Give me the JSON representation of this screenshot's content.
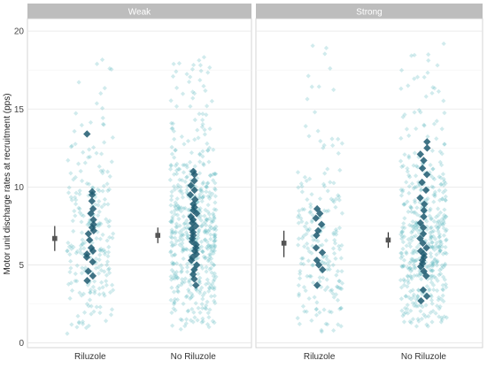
{
  "chart_data": {
    "type": "scatter",
    "ylabel": "Motor unit discharge rates at recruitment (pps)",
    "ylim": [
      -0.3,
      20.8
    ],
    "yticks": [
      0,
      5,
      10,
      15,
      20
    ],
    "categories": [
      "Riluzole",
      "No Riluzole"
    ],
    "grid": true,
    "colors": {
      "points": "#5bb8c0",
      "highlight": "#1e5a70",
      "summary": "#555555",
      "strip": "#bdbdbd",
      "strip_text": "#ffffff",
      "panel_border": "#cccccc",
      "grid": "#ececec"
    },
    "panels": [
      {
        "label": "Weak",
        "groups": [
          {
            "category": "Riluzole",
            "summary": {
              "mean": 6.7,
              "low": 5.9,
              "high": 7.5
            },
            "cloud": {
              "n": 230,
              "min": 0.4,
              "max": 18.2,
              "center": 6.5
            },
            "highlight": [
              4.0,
              4.3,
              4.6,
              5.2,
              5.5,
              5.7,
              5.9,
              6.1,
              6.6,
              7.0,
              7.2,
              7.4,
              7.6,
              7.9,
              8.3,
              8.6,
              9.1,
              9.5,
              9.7,
              13.4
            ]
          },
          {
            "category": "No Riluzole",
            "summary": {
              "mean": 6.9,
              "low": 6.4,
              "high": 7.4
            },
            "cloud": {
              "n": 520,
              "min": 0.8,
              "max": 18.9,
              "center": 7.0
            },
            "highlight": [
              3.7,
              4.1,
              4.4,
              4.7,
              5.0,
              5.3,
              5.5,
              5.7,
              5.9,
              6.1,
              6.3,
              6.5,
              6.7,
              6.9,
              7.1,
              7.3,
              7.5,
              7.7,
              7.9,
              8.1,
              8.3,
              8.5,
              8.7,
              8.9,
              9.2,
              9.5,
              9.8,
              10.1,
              10.4,
              10.8,
              11.0
            ]
          }
        ]
      },
      {
        "label": "Strong",
        "groups": [
          {
            "category": "Riluzole",
            "summary": {
              "mean": 6.4,
              "low": 5.5,
              "high": 7.2
            },
            "cloud": {
              "n": 200,
              "min": 0.4,
              "max": 19.8,
              "center": 6.0
            },
            "highlight": [
              3.7,
              4.7,
              5.0,
              5.3,
              5.8,
              6.1,
              6.9,
              7.2,
              7.6,
              8.0,
              8.3,
              8.6
            ]
          },
          {
            "category": "No Riluzole",
            "summary": {
              "mean": 6.6,
              "low": 6.1,
              "high": 7.1
            },
            "cloud": {
              "n": 460,
              "min": 1.0,
              "max": 19.2,
              "center": 6.5
            },
            "highlight": [
              2.7,
              3.0,
              3.4,
              4.3,
              4.6,
              4.9,
              5.1,
              5.3,
              5.5,
              5.7,
              5.9,
              6.1,
              6.4,
              6.7,
              7.0,
              7.4,
              7.7,
              8.1,
              8.5,
              8.9,
              9.3,
              9.8,
              10.3,
              10.8,
              11.2,
              11.7,
              12.1,
              12.5,
              12.9
            ]
          }
        ]
      }
    ]
  }
}
